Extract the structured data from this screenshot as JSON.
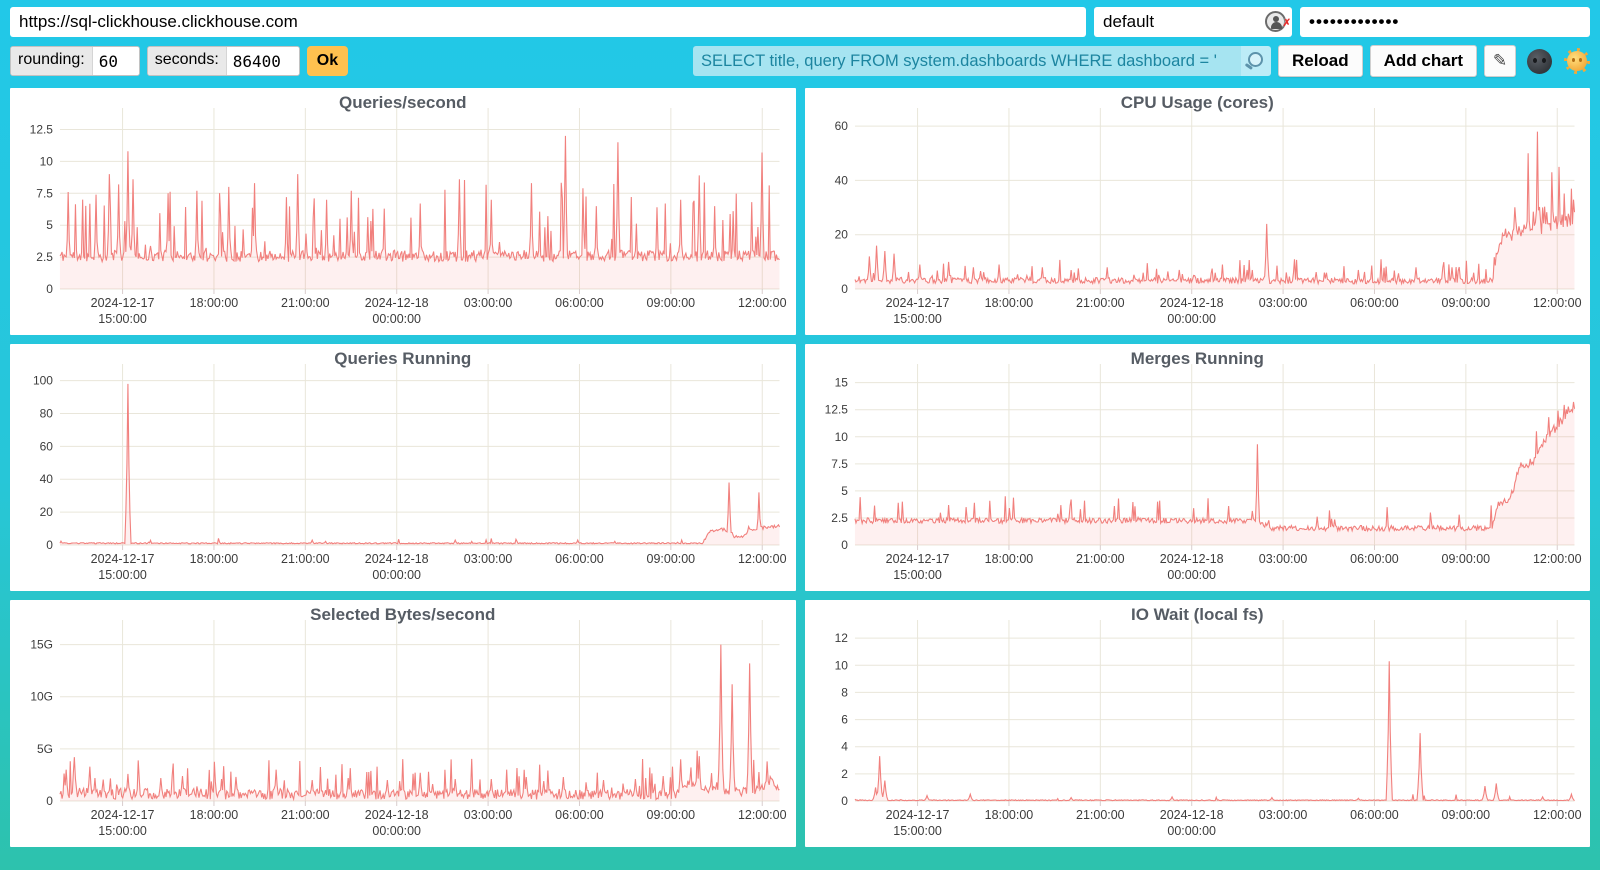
{
  "topbar": {
    "url": "https://sql-clickhouse.clickhouse.com",
    "user": "default",
    "password_masked": "•••••••••••••",
    "user_icon": "person-circle-with-red-x"
  },
  "toolbar": {
    "rounding_label": "rounding:",
    "rounding_value": "60",
    "seconds_label": "seconds:",
    "seconds_value": "86400",
    "ok_label": "Ok",
    "query_value": "SELECT title, query FROM system.dashboards WHERE dashboard = '",
    "search_icon": "magnifier-icon",
    "reload_label": "Reload",
    "add_chart_label": "Add chart",
    "edit_icon": "✎",
    "theme_dark_icon": "moon-face-emoji",
    "theme_light_icon": "sun-face-emoji"
  },
  "colors": {
    "line": "#f1807d",
    "fill": "rgba(241,110,108,0.10)",
    "grid": "#e9e6da",
    "tick_text": "#3c3c3c",
    "title_text": "#565c64",
    "background_top": "#22c8e8",
    "background_bottom": "#2dc2ad",
    "accent_button": "#ffc14f",
    "query_bg": "#a6e4f1"
  },
  "x_axis": {
    "start": "2024-12-17 ~14:00:00",
    "end": "2024-12-18 ~12:30:00",
    "ticks": [
      {
        "t": 0.087,
        "lines": [
          "2024-12-17",
          "15:00:00"
        ]
      },
      {
        "t": 0.214,
        "lines": [
          "18:00:00"
        ]
      },
      {
        "t": 0.341,
        "lines": [
          "21:00:00"
        ]
      },
      {
        "t": 0.468,
        "lines": [
          "2024-12-18",
          "00:00:00"
        ]
      },
      {
        "t": 0.595,
        "lines": [
          "03:00:00"
        ]
      },
      {
        "t": 0.722,
        "lines": [
          "06:00:00"
        ]
      },
      {
        "t": 0.849,
        "lines": [
          "09:00:00"
        ]
      },
      {
        "t": 0.976,
        "lines": [
          "12:00:00"
        ]
      }
    ]
  },
  "chart_data": [
    {
      "type": "area",
      "title": "Queries/second",
      "ymax": 13.4,
      "yticks": [
        {
          "v": 0,
          "l": "0"
        },
        {
          "v": 2.5,
          "l": "2.5"
        },
        {
          "v": 5,
          "l": "5"
        },
        {
          "v": 7.5,
          "l": "7.5"
        },
        {
          "v": 10,
          "l": "10"
        },
        {
          "v": 12.5,
          "l": "12.5"
        }
      ],
      "seed": 11,
      "base": [
        [
          0,
          2.5
        ],
        [
          1,
          2.5
        ]
      ],
      "noise": [
        [
          0,
          0.9
        ],
        [
          1,
          0.9
        ]
      ],
      "spike_prob": 0.1,
      "spike_amp": 3.2,
      "spikes": [
        [
          0.012,
          7.6
        ],
        [
          0.05,
          7.4
        ],
        [
          0.068,
          9.0
        ],
        [
          0.082,
          8.2
        ],
        [
          0.095,
          10.8
        ],
        [
          0.102,
          8.6
        ],
        [
          0.15,
          7.5
        ],
        [
          0.19,
          7.7
        ],
        [
          0.235,
          8.0
        ],
        [
          0.27,
          8.3
        ],
        [
          0.315,
          7.2
        ],
        [
          0.33,
          9.0
        ],
        [
          0.37,
          7.0
        ],
        [
          0.405,
          7.7
        ],
        [
          0.45,
          6.3
        ],
        [
          0.5,
          6.7
        ],
        [
          0.555,
          8.6
        ],
        [
          0.6,
          7.0
        ],
        [
          0.655,
          8.3
        ],
        [
          0.703,
          12.0
        ],
        [
          0.745,
          6.5
        ],
        [
          0.775,
          11.5
        ],
        [
          0.83,
          6.4
        ],
        [
          0.862,
          7.0
        ],
        [
          0.888,
          8.9
        ],
        [
          0.91,
          6.5
        ],
        [
          0.935,
          6.1
        ],
        [
          0.976,
          10.7
        ]
      ]
    },
    {
      "type": "area",
      "title": "CPU Usage (cores)",
      "ymax": 63,
      "yticks": [
        {
          "v": 0,
          "l": "0"
        },
        {
          "v": 20,
          "l": "20"
        },
        {
          "v": 40,
          "l": "40"
        },
        {
          "v": 60,
          "l": "60"
        }
      ],
      "seed": 22,
      "base": [
        [
          0,
          3
        ],
        [
          0.885,
          2.7
        ],
        [
          0.9,
          19
        ],
        [
          0.94,
          21
        ],
        [
          0.97,
          23
        ],
        [
          1,
          26
        ]
      ],
      "noise": [
        [
          0,
          2.2
        ],
        [
          0.885,
          2.2
        ],
        [
          0.9,
          5
        ],
        [
          1,
          6
        ]
      ],
      "spike_prob": 0.12,
      "spike_amp": 4.5,
      "spikes": [
        [
          0.02,
          12
        ],
        [
          0.03,
          16
        ],
        [
          0.042,
          14
        ],
        [
          0.055,
          13
        ],
        [
          0.09,
          9
        ],
        [
          0.13,
          10
        ],
        [
          0.165,
          8
        ],
        [
          0.2,
          9
        ],
        [
          0.26,
          8
        ],
        [
          0.3,
          7
        ],
        [
          0.35,
          8
        ],
        [
          0.4,
          6
        ],
        [
          0.45,
          7
        ],
        [
          0.5,
          6
        ],
        [
          0.545,
          7
        ],
        [
          0.572,
          24
        ],
        [
          0.61,
          6
        ],
        [
          0.655,
          6
        ],
        [
          0.7,
          7
        ],
        [
          0.75,
          6
        ],
        [
          0.78,
          8
        ],
        [
          0.818,
          9
        ],
        [
          0.83,
          8
        ],
        [
          0.86,
          6
        ],
        [
          0.935,
          50
        ],
        [
          0.948,
          58
        ],
        [
          0.968,
          43
        ],
        [
          0.978,
          45
        ],
        [
          0.995,
          37
        ]
      ]
    },
    {
      "type": "area",
      "title": "Queries Running",
      "ymax": 104,
      "yticks": [
        {
          "v": 0,
          "l": "0"
        },
        {
          "v": 20,
          "l": "20"
        },
        {
          "v": 40,
          "l": "40"
        },
        {
          "v": 60,
          "l": "60"
        },
        {
          "v": 80,
          "l": "80"
        },
        {
          "v": 100,
          "l": "100"
        }
      ],
      "seed": 33,
      "base": [
        [
          0,
          1
        ],
        [
          0.893,
          1
        ],
        [
          0.903,
          8.5
        ],
        [
          0.923,
          9.5
        ],
        [
          0.932,
          5
        ],
        [
          0.95,
          5
        ],
        [
          0.957,
          9
        ],
        [
          0.97,
          10
        ],
        [
          1,
          11.5
        ]
      ],
      "noise": [
        [
          0,
          0.7
        ],
        [
          0.89,
          0.7
        ],
        [
          0.9,
          1.8
        ],
        [
          1,
          2.0
        ]
      ],
      "spike_prob": 0.03,
      "spike_amp": 1.5,
      "spikes": [
        [
          0.094,
          98
        ],
        [
          0.35,
          3
        ],
        [
          0.55,
          3
        ],
        [
          0.72,
          3
        ],
        [
          0.93,
          38
        ],
        [
          0.972,
          32
        ]
      ]
    },
    {
      "type": "area",
      "title": "Merges Running",
      "ymax": 15.8,
      "yticks": [
        {
          "v": 0,
          "l": "0"
        },
        {
          "v": 2.5,
          "l": "2.5"
        },
        {
          "v": 5,
          "l": "5"
        },
        {
          "v": 7.5,
          "l": "7.5"
        },
        {
          "v": 10,
          "l": "10"
        },
        {
          "v": 12.5,
          "l": "12.5"
        },
        {
          "v": 15,
          "l": "15"
        }
      ],
      "seed": 44,
      "base": [
        [
          0,
          2.2
        ],
        [
          0.555,
          2.2
        ],
        [
          0.58,
          1.5
        ],
        [
          0.885,
          1.5
        ],
        [
          0.893,
          3.6
        ],
        [
          0.91,
          4.2
        ],
        [
          0.925,
          7.2
        ],
        [
          0.945,
          7.8
        ],
        [
          0.96,
          9.6
        ],
        [
          0.975,
          10.8
        ],
        [
          0.99,
          12.2
        ],
        [
          1,
          12.7
        ]
      ],
      "noise": [
        [
          0,
          0.5
        ],
        [
          0.88,
          0.5
        ],
        [
          0.92,
          0.9
        ],
        [
          1,
          1.0
        ]
      ],
      "spike_prob": 0.05,
      "spike_amp": 1.3,
      "spikes": [
        [
          0.06,
          3.9
        ],
        [
          0.13,
          3.7
        ],
        [
          0.22,
          3.8
        ],
        [
          0.3,
          4.2
        ],
        [
          0.36,
          3.6
        ],
        [
          0.42,
          4.0
        ],
        [
          0.47,
          3.4
        ],
        [
          0.52,
          3.6
        ],
        [
          0.56,
          9.3
        ],
        [
          0.66,
          3.2
        ],
        [
          0.74,
          3.5
        ],
        [
          0.8,
          3.0
        ],
        [
          0.84,
          2.8
        ]
      ]
    },
    {
      "type": "area",
      "title": "Selected Bytes/second",
      "unit": "G",
      "ymax": 16.4,
      "yticks": [
        {
          "v": 0,
          "l": "0"
        },
        {
          "v": 5,
          "l": "5G"
        },
        {
          "v": 10,
          "l": "10G"
        },
        {
          "v": 15,
          "l": "15G"
        }
      ],
      "seed": 55,
      "base": [
        [
          0,
          0.6
        ],
        [
          0.86,
          0.5
        ],
        [
          0.875,
          1.7
        ],
        [
          0.895,
          1.2
        ],
        [
          0.91,
          0.9
        ],
        [
          0.955,
          0.8
        ],
        [
          0.975,
          1.1
        ],
        [
          0.988,
          2.0
        ],
        [
          1,
          0.9
        ]
      ],
      "noise": [
        [
          0,
          1.1
        ],
        [
          0.86,
          0.9
        ],
        [
          1,
          0.8
        ]
      ],
      "spike_prob": 0.1,
      "spike_amp": 1.8,
      "spikes": [
        [
          0.008,
          3.0
        ],
        [
          0.02,
          4.2
        ],
        [
          0.042,
          3.3
        ],
        [
          0.095,
          2.6
        ],
        [
          0.14,
          2.2
        ],
        [
          0.17,
          2.4
        ],
        [
          0.225,
          2.1
        ],
        [
          0.3,
          3.0
        ],
        [
          0.35,
          2.0
        ],
        [
          0.4,
          2.2
        ],
        [
          0.455,
          2.0
        ],
        [
          0.5,
          2.7
        ],
        [
          0.55,
          2.1
        ],
        [
          0.6,
          2.1
        ],
        [
          0.648,
          2.3
        ],
        [
          0.7,
          2.3
        ],
        [
          0.755,
          2.0
        ],
        [
          0.8,
          2.1
        ],
        [
          0.838,
          2.4
        ],
        [
          0.862,
          4.0
        ],
        [
          0.888,
          4.3
        ],
        [
          0.919,
          15.0
        ],
        [
          0.934,
          11.2
        ],
        [
          0.959,
          13.2
        ],
        [
          0.983,
          3.8
        ]
      ]
    },
    {
      "type": "area",
      "title": "IO Wait (local fs)",
      "ymax": 12.6,
      "yticks": [
        {
          "v": 0,
          "l": "0"
        },
        {
          "v": 2,
          "l": "2"
        },
        {
          "v": 4,
          "l": "4"
        },
        {
          "v": 6,
          "l": "6"
        },
        {
          "v": 8,
          "l": "8"
        },
        {
          "v": 10,
          "l": "10"
        },
        {
          "v": 12,
          "l": "12"
        }
      ],
      "seed": 66,
      "base": [
        [
          0,
          0.05
        ],
        [
          1,
          0.05
        ]
      ],
      "noise": [
        [
          0,
          0.07
        ],
        [
          1,
          0.07
        ]
      ],
      "spike_prob": 0.012,
      "spike_amp": 0.25,
      "spikes": [
        [
          0.028,
          1.0
        ],
        [
          0.035,
          3.3
        ],
        [
          0.042,
          1.5
        ],
        [
          0.1,
          0.4
        ],
        [
          0.16,
          0.5
        ],
        [
          0.3,
          0.25
        ],
        [
          0.44,
          0.3
        ],
        [
          0.58,
          0.25
        ],
        [
          0.7,
          0.2
        ],
        [
          0.743,
          10.3
        ],
        [
          0.785,
          5.0
        ],
        [
          0.876,
          1.1
        ],
        [
          0.891,
          1.3
        ],
        [
          0.955,
          0.3
        ],
        [
          0.995,
          0.5
        ]
      ]
    }
  ]
}
